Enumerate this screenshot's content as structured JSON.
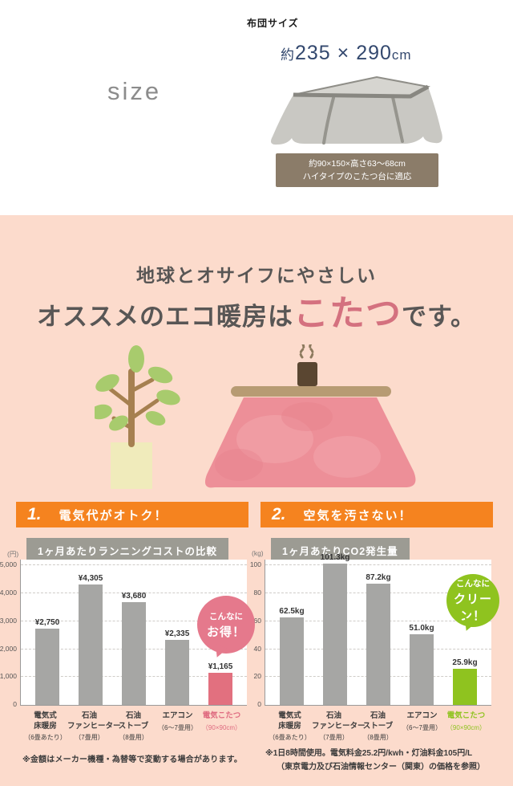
{
  "top": {
    "futon_size_label": "布団サイズ",
    "dim_prefix": "約",
    "dim_value": "235 × 290",
    "dim_unit": "cm",
    "size_word": "size",
    "info_line1": "約90×150×高さ63〜68cm",
    "info_line2": "ハイタイプのこたつ台に適応"
  },
  "hero": {
    "line1": "地球とオサイフにやさしい",
    "line2_pre": "オススメのエコ暖房は",
    "line2_accent": "こたつ",
    "line2_post": "です。"
  },
  "sections": [
    {
      "num": "1.",
      "title": "電気代がオトク！"
    },
    {
      "num": "2.",
      "title": "空気を汚さない！"
    }
  ],
  "chart_data": [
    {
      "type": "bar",
      "title": "1ヶ月あたりランニングコストの比較",
      "unit": "(円)",
      "ylim": [
        0,
        5000
      ],
      "yticks": [
        "5,000",
        "4,000",
        "3,000",
        "2,000",
        "1,000",
        "0"
      ],
      "categories": [
        "電気式床暖房",
        "石油ファンヒーター",
        "石油ストーブ",
        "エアコン",
        "電気こたつ"
      ],
      "category_lines": [
        [
          "電気式",
          "床暖房"
        ],
        [
          "石油",
          "ファンヒーター"
        ],
        [
          "石油",
          "ストーブ"
        ],
        [
          "エアコン"
        ],
        [
          "電気こたつ"
        ]
      ],
      "category_subs": [
        "（6畳あたり）",
        "（7畳用）",
        "（8畳用）",
        "（6〜7畳用）",
        "（90×90cm）"
      ],
      "values": [
        2750,
        4305,
        3680,
        2335,
        1165
      ],
      "value_labels": [
        "¥2,750",
        "¥4,305",
        "¥3,680",
        "¥2,335",
        "¥1,165"
      ],
      "bar_color": "#a6a6a4",
      "highlight_index": 4,
      "highlight_color": "#e2707f",
      "highlight_text_color": "#df6b80",
      "grid": true,
      "bubble": {
        "line1": "こんなに",
        "line2": "お得！",
        "color": "#e5798c",
        "size": 72,
        "top": 45,
        "right": -8
      }
    },
    {
      "type": "bar",
      "title": "1ヶ月あたりCO2発生量",
      "unit": "(kg)",
      "ylim": [
        0,
        100
      ],
      "yticks": [
        "100",
        "80",
        "60",
        "40",
        "20",
        "0"
      ],
      "categories": [
        "電気式床暖房",
        "石油ファンヒーター",
        "石油ストーブ",
        "エアコン",
        "電気こたつ"
      ],
      "category_lines": [
        [
          "電気式",
          "床暖房"
        ],
        [
          "石油",
          "ファンヒーター"
        ],
        [
          "石油",
          "ストーブ"
        ],
        [
          "エアコン"
        ],
        [
          "電気こたつ"
        ]
      ],
      "category_subs": [
        "（6畳あたり）",
        "（7畳用）",
        "（8畳用）",
        "（6〜7畳用）",
        "（90×90cm）"
      ],
      "values": [
        62.5,
        101.3,
        87.2,
        51.0,
        25.9
      ],
      "value_labels": [
        "62.5kg",
        "101.3kg",
        "87.2kg",
        "51.0kg",
        "25.9kg"
      ],
      "bar_color": "#a6a6a4",
      "highlight_index": 4,
      "highlight_color": "#8fc31f",
      "highlight_text_color": "#8fc31f",
      "grid": true,
      "bubble": {
        "line1": "こんなに",
        "line2": "クリーン！",
        "color": "#8fc31f",
        "size": 66,
        "top": 18,
        "right": -8
      }
    }
  ],
  "notes": {
    "left": "※金額はメーカー機種・為替等で変動する場合があります。",
    "right_line1": "※1日8時間使用。電気料金25.2円/kwh・灯油料金105円/L",
    "right_line2": "（東京電力及び石油情報センター（関東）の価格を参照）"
  },
  "colors": {
    "background_pink": "#fcdbcc",
    "accent_orange": "#f5831f",
    "navy": "#33486e",
    "bar_gray": "#a6a6a4",
    "kotatsu_pink": "#e2707f",
    "eco_green": "#8fc31f",
    "title_bar_gray": "#9c9b93",
    "info_box_brown": "#8b7c69",
    "heading_accent_pink": "#d4717f"
  }
}
